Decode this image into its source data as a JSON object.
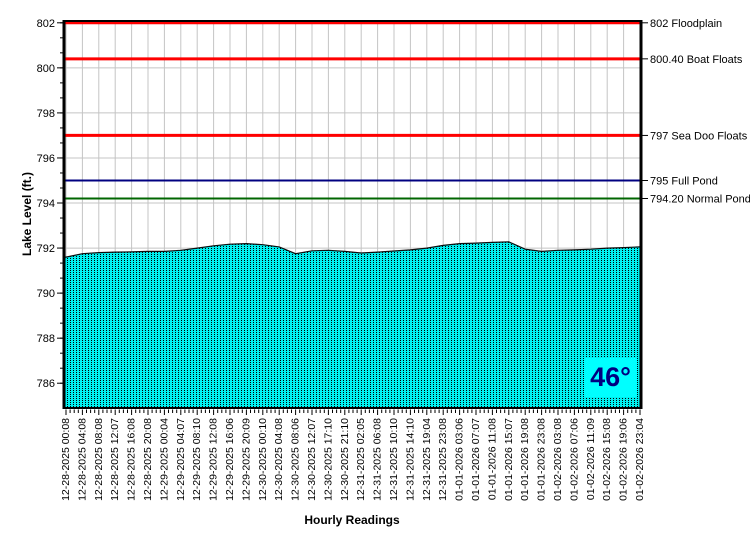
{
  "chart_data": {
    "type": "area",
    "title": "",
    "xlabel": "Hourly Readings",
    "ylabel": "Lake Level (ft.)",
    "ylim": [
      784.9,
      802.08
    ],
    "yticks": [
      786,
      788,
      790,
      792,
      794,
      796,
      798,
      800,
      802
    ],
    "grid": true,
    "grid_color": "#c4c4c4",
    "fill_bg_color": "#00f0f0",
    "fill_dot_color": "#000000",
    "edge_color": "#0d0d0d",
    "categories": [
      "12-28-2025 00:08",
      "12-28-2025 04:08",
      "12-28-2025 08:08",
      "12-28-2025 12:07",
      "12-28-2025 16:08",
      "12-28-2025 20:08",
      "12-29-2025 00:04",
      "12-29-2025 04:07",
      "12-29-2025 08:10",
      "12-29-2025 12:08",
      "12-29-2025 16:06",
      "12-29-2025 20:09",
      "12-30-2025 00:10",
      "12-30-2025 04:08",
      "12-30-2025 08:06",
      "12-30-2025 12:07",
      "12-30-2025 17:10",
      "12-30-2025 21:10",
      "12-31-2025 02:05",
      "12-31-2025 06:08",
      "12-31-2025 10:10",
      "12-31-2025 14:10",
      "12-31-2025 19:04",
      "12-31-2025 23:08",
      "01-01-2026 03:06",
      "01-01-2026 07:07",
      "01-01-2026 11:08",
      "01-01-2026 15:07",
      "01-01-2026 19:08",
      "01-01-2026 23:08",
      "01-02-2026 03:08",
      "01-02-2026 07:06",
      "01-02-2026 11:09",
      "01-02-2026 15:08",
      "01-02-2026 19:06",
      "01-02-2026 23:04"
    ],
    "series": [
      {
        "name": "Lake Level",
        "values": [
          791.6,
          791.75,
          791.8,
          791.82,
          791.83,
          791.85,
          791.85,
          791.9,
          792.0,
          792.1,
          792.17,
          792.2,
          792.15,
          792.05,
          791.75,
          791.88,
          791.9,
          791.85,
          791.78,
          791.82,
          791.87,
          791.92,
          792.0,
          792.12,
          792.2,
          792.22,
          792.25,
          792.28,
          791.95,
          791.85,
          791.9,
          791.92,
          791.95,
          792.0,
          792.02,
          792.05
        ]
      }
    ],
    "reference_lines": [
      {
        "value": 802.0,
        "label": "802 Floodplain",
        "color": "#ff0000",
        "width": 3
      },
      {
        "value": 800.4,
        "label": "800.40 Boat Floats",
        "color": "#ff0000",
        "width": 3
      },
      {
        "value": 797.0,
        "label": "797 Sea Doo Floats",
        "color": "#ff0000",
        "width": 3
      },
      {
        "value": 795.0,
        "label": "795 Full Pond",
        "color": "#000080",
        "width": 2
      },
      {
        "value": 794.2,
        "label": "794.20 Normal Pond",
        "color": "#006600",
        "width": 2
      }
    ],
    "legend_position": "right"
  },
  "temperature": {
    "value": "46°",
    "text_color": "#000080",
    "bg_color": "#00ffff"
  }
}
